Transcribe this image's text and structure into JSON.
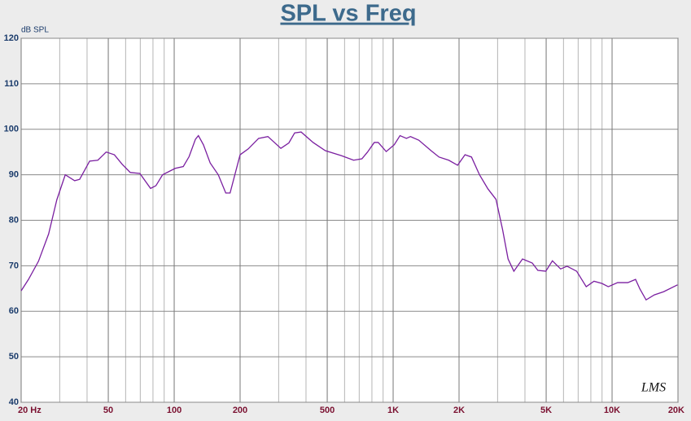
{
  "chart_data": {
    "type": "line",
    "title": "SPL vs Freq",
    "y_label": "dB SPL",
    "logo": "LMS",
    "log_x": true,
    "grid": true,
    "xlim": [
      20,
      20000
    ],
    "ylim": [
      40,
      120
    ],
    "xticks": [
      {
        "value": 20,
        "label": "20 Hz"
      },
      50,
      100,
      200,
      500,
      {
        "value": 1000,
        "label": "1K"
      },
      {
        "value": 2000,
        "label": "2K"
      },
      {
        "value": 5000,
        "label": "5K"
      },
      {
        "value": 10000,
        "label": "10K"
      },
      {
        "value": 20000,
        "label": "20K"
      }
    ],
    "yticks": [
      40,
      50,
      60,
      70,
      80,
      90,
      100,
      110,
      120
    ],
    "series": [
      {
        "color": "#7a1fa0",
        "x": [
          20,
          21.6,
          24,
          26.7,
          29.1,
          31.8,
          35.1,
          37,
          41.1,
          44.8,
          48.9,
          53.3,
          57.9,
          63,
          69.7,
          78,
          82.5,
          88.5,
          101,
          110,
          117,
          125,
          129,
          136,
          146,
          159,
          172,
          180,
          200,
          218,
          243,
          268,
          307,
          334,
          355,
          380,
          431,
          490,
          580,
          660,
          720,
          764,
          820,
          855,
          930,
          1012,
          1075,
          1150,
          1200,
          1310,
          1490,
          1620,
          1795,
          1970,
          2130,
          2280,
          2480,
          2710,
          2950,
          3160,
          3350,
          3560,
          3900,
          4320,
          4580,
          4980,
          5340,
          5820,
          6230,
          6890,
          7620,
          8270,
          9000,
          9610,
          10600,
          11800,
          12800,
          13400,
          14300,
          15600,
          17200,
          19900
        ],
        "values": [
          64.5,
          67,
          71,
          77,
          84.5,
          90,
          88.7,
          89,
          93,
          93.2,
          95,
          94.4,
          92.3,
          90.5,
          90.3,
          87,
          87.6,
          90,
          91.4,
          91.8,
          94,
          97.8,
          98.6,
          96.6,
          92.6,
          90,
          86,
          86,
          94.4,
          95.7,
          98,
          98.4,
          95.8,
          97,
          99.2,
          99.4,
          97.1,
          95.3,
          94.2,
          93.2,
          93.5,
          95,
          97.1,
          97.1,
          95.1,
          96.6,
          98.6,
          98,
          98.4,
          97.6,
          95.3,
          93.9,
          93.2,
          92.1,
          94.4,
          93.9,
          90,
          86.9,
          84.6,
          78,
          71.5,
          68.8,
          71.5,
          70.6,
          69,
          68.8,
          71.1,
          69.3,
          69.9,
          68.8,
          65.4,
          66.6,
          66.1,
          65.4,
          66.3,
          66.3,
          67,
          64.9,
          62.5,
          63.6,
          64.3,
          65.8
        ]
      }
    ]
  }
}
